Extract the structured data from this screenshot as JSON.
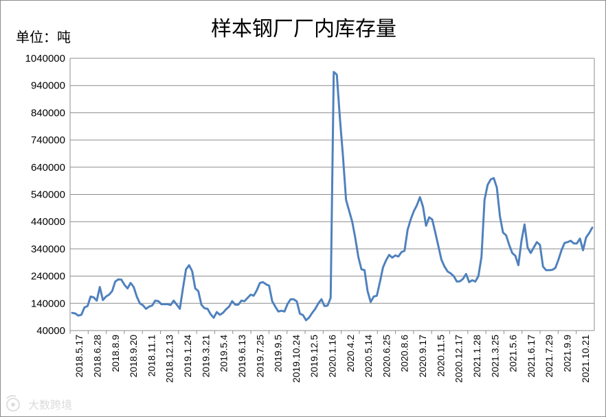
{
  "chart_data": {
    "type": "line",
    "title": "样本钢厂厂内库存量",
    "unit_label": "单位：吨",
    "ylim": [
      40000,
      1040000
    ],
    "yticks": [
      1040000,
      940000,
      840000,
      740000,
      640000,
      540000,
      440000,
      340000,
      240000,
      140000,
      40000
    ],
    "ytick_labels": [
      "1040000",
      "940000",
      "840000",
      "740000",
      "640000",
      "540000",
      "440000",
      "340000",
      "240000",
      "140000",
      "40000"
    ],
    "xtick_labels": [
      "2018.5.17",
      "2018.6.28",
      "2018.8.9",
      "2018.9.20",
      "2018.11.1",
      "2018.12.13",
      "2019.1.24",
      "2019.3.21",
      "2019.5.4",
      "2019.6.13",
      "2019.7.25",
      "2019.9.5",
      "2019.10.24",
      "2019.12.5",
      "2020.1.16",
      "2020.4.2",
      "2020.5.14",
      "2020.6.25",
      "2020.8.6",
      "2020.9.17",
      "2020.11.5",
      "2020.12.17",
      "2021.1.28",
      "2021.3.25",
      "2021.5.6",
      "2021.6.17",
      "2021.7.29",
      "2021.9.9",
      "2021.10.21"
    ],
    "grid": true,
    "series_color": "#4f81bd",
    "values": [
      105000,
      103000,
      95000,
      98000,
      125000,
      130000,
      165000,
      162000,
      150000,
      200000,
      152000,
      165000,
      172000,
      185000,
      220000,
      228000,
      227000,
      208000,
      195000,
      215000,
      200000,
      165000,
      140000,
      133000,
      120000,
      128000,
      132000,
      150000,
      148000,
      137000,
      137000,
      137000,
      134000,
      150000,
      135000,
      120000,
      195000,
      265000,
      280000,
      258000,
      195000,
      185000,
      135000,
      122000,
      120000,
      100000,
      87000,
      108000,
      98000,
      105000,
      118000,
      128000,
      148000,
      135000,
      135000,
      150000,
      148000,
      160000,
      172000,
      168000,
      188000,
      215000,
      218000,
      210000,
      205000,
      148000,
      128000,
      110000,
      113000,
      110000,
      138000,
      155000,
      155000,
      147000,
      102000,
      97000,
      78000,
      88000,
      105000,
      120000,
      140000,
      155000,
      130000,
      132000,
      160000,
      990000,
      980000,
      820000,
      680000,
      520000,
      480000,
      440000,
      380000,
      310000,
      265000,
      262000,
      185000,
      145000,
      165000,
      168000,
      218000,
      272000,
      298000,
      318000,
      308000,
      316000,
      312000,
      328000,
      333000,
      410000,
      448000,
      478000,
      500000,
      530000,
      495000,
      425000,
      456000,
      448000,
      400000,
      350000,
      300000,
      275000,
      257000,
      250000,
      240000,
      220000,
      221000,
      230000,
      248000,
      218000,
      225000,
      220000,
      240000,
      310000,
      520000,
      575000,
      595000,
      600000,
      565000,
      460000,
      400000,
      390000,
      355000,
      325000,
      315000,
      280000,
      370000,
      430000,
      345000,
      325000,
      345000,
      365000,
      355000,
      275000,
      262000,
      262000,
      263000,
      270000,
      300000,
      335000,
      362000,
      365000,
      370000,
      360000,
      360000,
      378000,
      335000,
      382000,
      398000,
      418000
    ]
  },
  "watermark": {
    "icon": "eye-logo-icon",
    "text": "大数跨境"
  }
}
